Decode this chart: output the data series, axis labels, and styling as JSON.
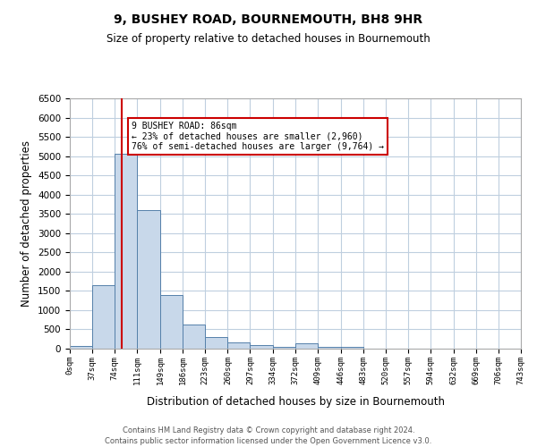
{
  "title": "9, BUSHEY ROAD, BOURNEMOUTH, BH8 9HR",
  "subtitle": "Size of property relative to detached houses in Bournemouth",
  "xlabel": "Distribution of detached houses by size in Bournemouth",
  "ylabel": "Number of detached properties",
  "bar_bins": [
    0,
    37,
    74,
    111,
    149,
    186,
    223,
    260,
    297,
    334,
    372,
    409,
    446,
    483,
    520,
    557,
    594,
    632,
    669,
    706,
    743
  ],
  "bar_values": [
    75,
    1650,
    5050,
    3600,
    1400,
    620,
    310,
    155,
    100,
    50,
    130,
    50,
    50,
    0,
    0,
    0,
    0,
    0,
    0,
    0
  ],
  "property_line_x": 86,
  "annotation_title": "9 BUSHEY ROAD: 86sqm",
  "annotation_line1": "← 23% of detached houses are smaller (2,960)",
  "annotation_line2": "76% of semi-detached houses are larger (9,764) →",
  "bar_facecolor": "#c8d8ea",
  "bar_edgecolor": "#5580aa",
  "line_color": "#cc0000",
  "annotation_box_edgecolor": "#cc0000",
  "background_color": "#ffffff",
  "grid_color": "#bfcfdf",
  "ylim": [
    0,
    6500
  ],
  "yticks": [
    0,
    500,
    1000,
    1500,
    2000,
    2500,
    3000,
    3500,
    4000,
    4500,
    5000,
    5500,
    6000,
    6500
  ],
  "xtick_labels": [
    "0sqm",
    "37sqm",
    "74sqm",
    "111sqm",
    "149sqm",
    "186sqm",
    "223sqm",
    "260sqm",
    "297sqm",
    "334sqm",
    "372sqm",
    "409sqm",
    "446sqm",
    "483sqm",
    "520sqm",
    "557sqm",
    "594sqm",
    "632sqm",
    "669sqm",
    "706sqm",
    "743sqm"
  ],
  "footer_line1": "Contains HM Land Registry data © Crown copyright and database right 2024.",
  "footer_line2": "Contains public sector information licensed under the Open Government Licence v3.0."
}
